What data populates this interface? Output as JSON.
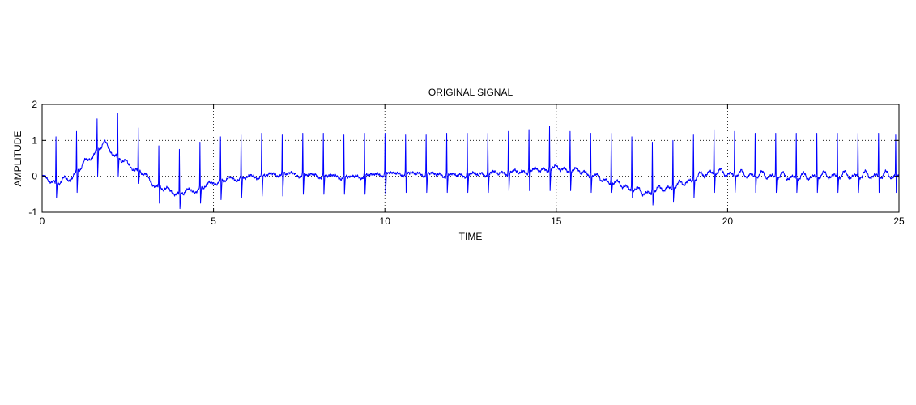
{
  "chart_data": {
    "type": "line",
    "title": "ORIGINAL SIGNAL",
    "xlabel": "TIME",
    "ylabel": "AMPLITUDE",
    "xlim": [
      0,
      25
    ],
    "ylim": [
      -1,
      2
    ],
    "xticks": [
      0,
      5,
      10,
      15,
      20,
      25
    ],
    "yticks": [
      -1,
      0,
      1,
      2
    ],
    "grid": "dotted",
    "line_color": "#0000ff",
    "series": [
      {
        "x": [
          0,
          0.4,
          0.8,
          1.2,
          1.5,
          1.8,
          2.1,
          2.5,
          2.9,
          3.2,
          3.6,
          4.0,
          4.5,
          5.0,
          5.5,
          6.0,
          7.0,
          8.0,
          9.0,
          10.0,
          11.0,
          12.0,
          13.0,
          14.0,
          15.0,
          15.8,
          16.3,
          17.0,
          17.6,
          18.0,
          18.5,
          19.0,
          19.5,
          20.0,
          21.0,
          22.0,
          23.0,
          24.0,
          25.0
        ],
        "y": [
          0,
          -0.2,
          -0.1,
          0.3,
          0.6,
          0.9,
          0.6,
          0.3,
          0.1,
          -0.2,
          -0.4,
          -0.5,
          -0.4,
          -0.2,
          -0.1,
          -0.05,
          0.05,
          0.0,
          -0.05,
          0.05,
          0.05,
          0.0,
          0.05,
          0.1,
          0.2,
          0.1,
          -0.1,
          -0.3,
          -0.5,
          -0.4,
          -0.3,
          -0.1,
          0.1,
          0.05,
          0.0,
          -0.05,
          0.0,
          0.0,
          0.0
        ]
      }
    ],
    "r_peaks": [
      {
        "t": 0.4,
        "amp": 1.1,
        "min": -0.6
      },
      {
        "t": 1.0,
        "amp": 1.25,
        "min": -0.45
      },
      {
        "t": 1.6,
        "amp": 1.6,
        "min": 0.0
      },
      {
        "t": 2.2,
        "amp": 1.75,
        "min": 0.0
      },
      {
        "t": 2.8,
        "amp": 1.35,
        "min": -0.2
      },
      {
        "t": 3.4,
        "amp": 0.85,
        "min": -0.75
      },
      {
        "t": 4.0,
        "amp": 0.75,
        "min": -0.9
      },
      {
        "t": 4.6,
        "amp": 0.95,
        "min": -0.75
      },
      {
        "t": 5.2,
        "amp": 1.1,
        "min": -0.65
      },
      {
        "t": 5.8,
        "amp": 1.15,
        "min": -0.6
      },
      {
        "t": 6.4,
        "amp": 1.2,
        "min": -0.55
      },
      {
        "t": 7.0,
        "amp": 1.15,
        "min": -0.55
      },
      {
        "t": 7.6,
        "amp": 1.2,
        "min": -0.5
      },
      {
        "t": 8.2,
        "amp": 1.2,
        "min": -0.5
      },
      {
        "t": 8.8,
        "amp": 1.15,
        "min": -0.5
      },
      {
        "t": 9.4,
        "amp": 1.2,
        "min": -0.5
      },
      {
        "t": 10.0,
        "amp": 1.2,
        "min": -0.5
      },
      {
        "t": 10.6,
        "amp": 1.15,
        "min": -0.45
      },
      {
        "t": 11.2,
        "amp": 1.15,
        "min": -0.45
      },
      {
        "t": 11.8,
        "amp": 1.2,
        "min": -0.45
      },
      {
        "t": 12.4,
        "amp": 1.2,
        "min": -0.45
      },
      {
        "t": 13.0,
        "amp": 1.2,
        "min": -0.45
      },
      {
        "t": 13.6,
        "amp": 1.25,
        "min": -0.4
      },
      {
        "t": 14.2,
        "amp": 1.3,
        "min": -0.4
      },
      {
        "t": 14.8,
        "amp": 1.4,
        "min": -0.4
      },
      {
        "t": 15.4,
        "amp": 1.25,
        "min": -0.4
      },
      {
        "t": 16.0,
        "amp": 1.2,
        "min": -0.45
      },
      {
        "t": 16.6,
        "amp": 1.2,
        "min": -0.45
      },
      {
        "t": 17.2,
        "amp": 1.1,
        "min": -0.6
      },
      {
        "t": 17.8,
        "amp": 0.95,
        "min": -0.8
      },
      {
        "t": 18.4,
        "amp": 1.0,
        "min": -0.7
      },
      {
        "t": 19.0,
        "amp": 1.15,
        "min": -0.6
      },
      {
        "t": 19.6,
        "amp": 1.3,
        "min": -0.45
      },
      {
        "t": 20.2,
        "amp": 1.25,
        "min": -0.45
      },
      {
        "t": 20.8,
        "amp": 1.2,
        "min": -0.45
      },
      {
        "t": 21.4,
        "amp": 1.2,
        "min": -0.45
      },
      {
        "t": 22.0,
        "amp": 1.2,
        "min": -0.45
      },
      {
        "t": 22.6,
        "amp": 1.2,
        "min": -0.45
      },
      {
        "t": 23.2,
        "amp": 1.2,
        "min": -0.45
      },
      {
        "t": 23.8,
        "amp": 1.2,
        "min": -0.45
      },
      {
        "t": 24.4,
        "amp": 1.2,
        "min": -0.45
      },
      {
        "t": 24.9,
        "amp": 1.15,
        "min": -0.45
      }
    ]
  }
}
